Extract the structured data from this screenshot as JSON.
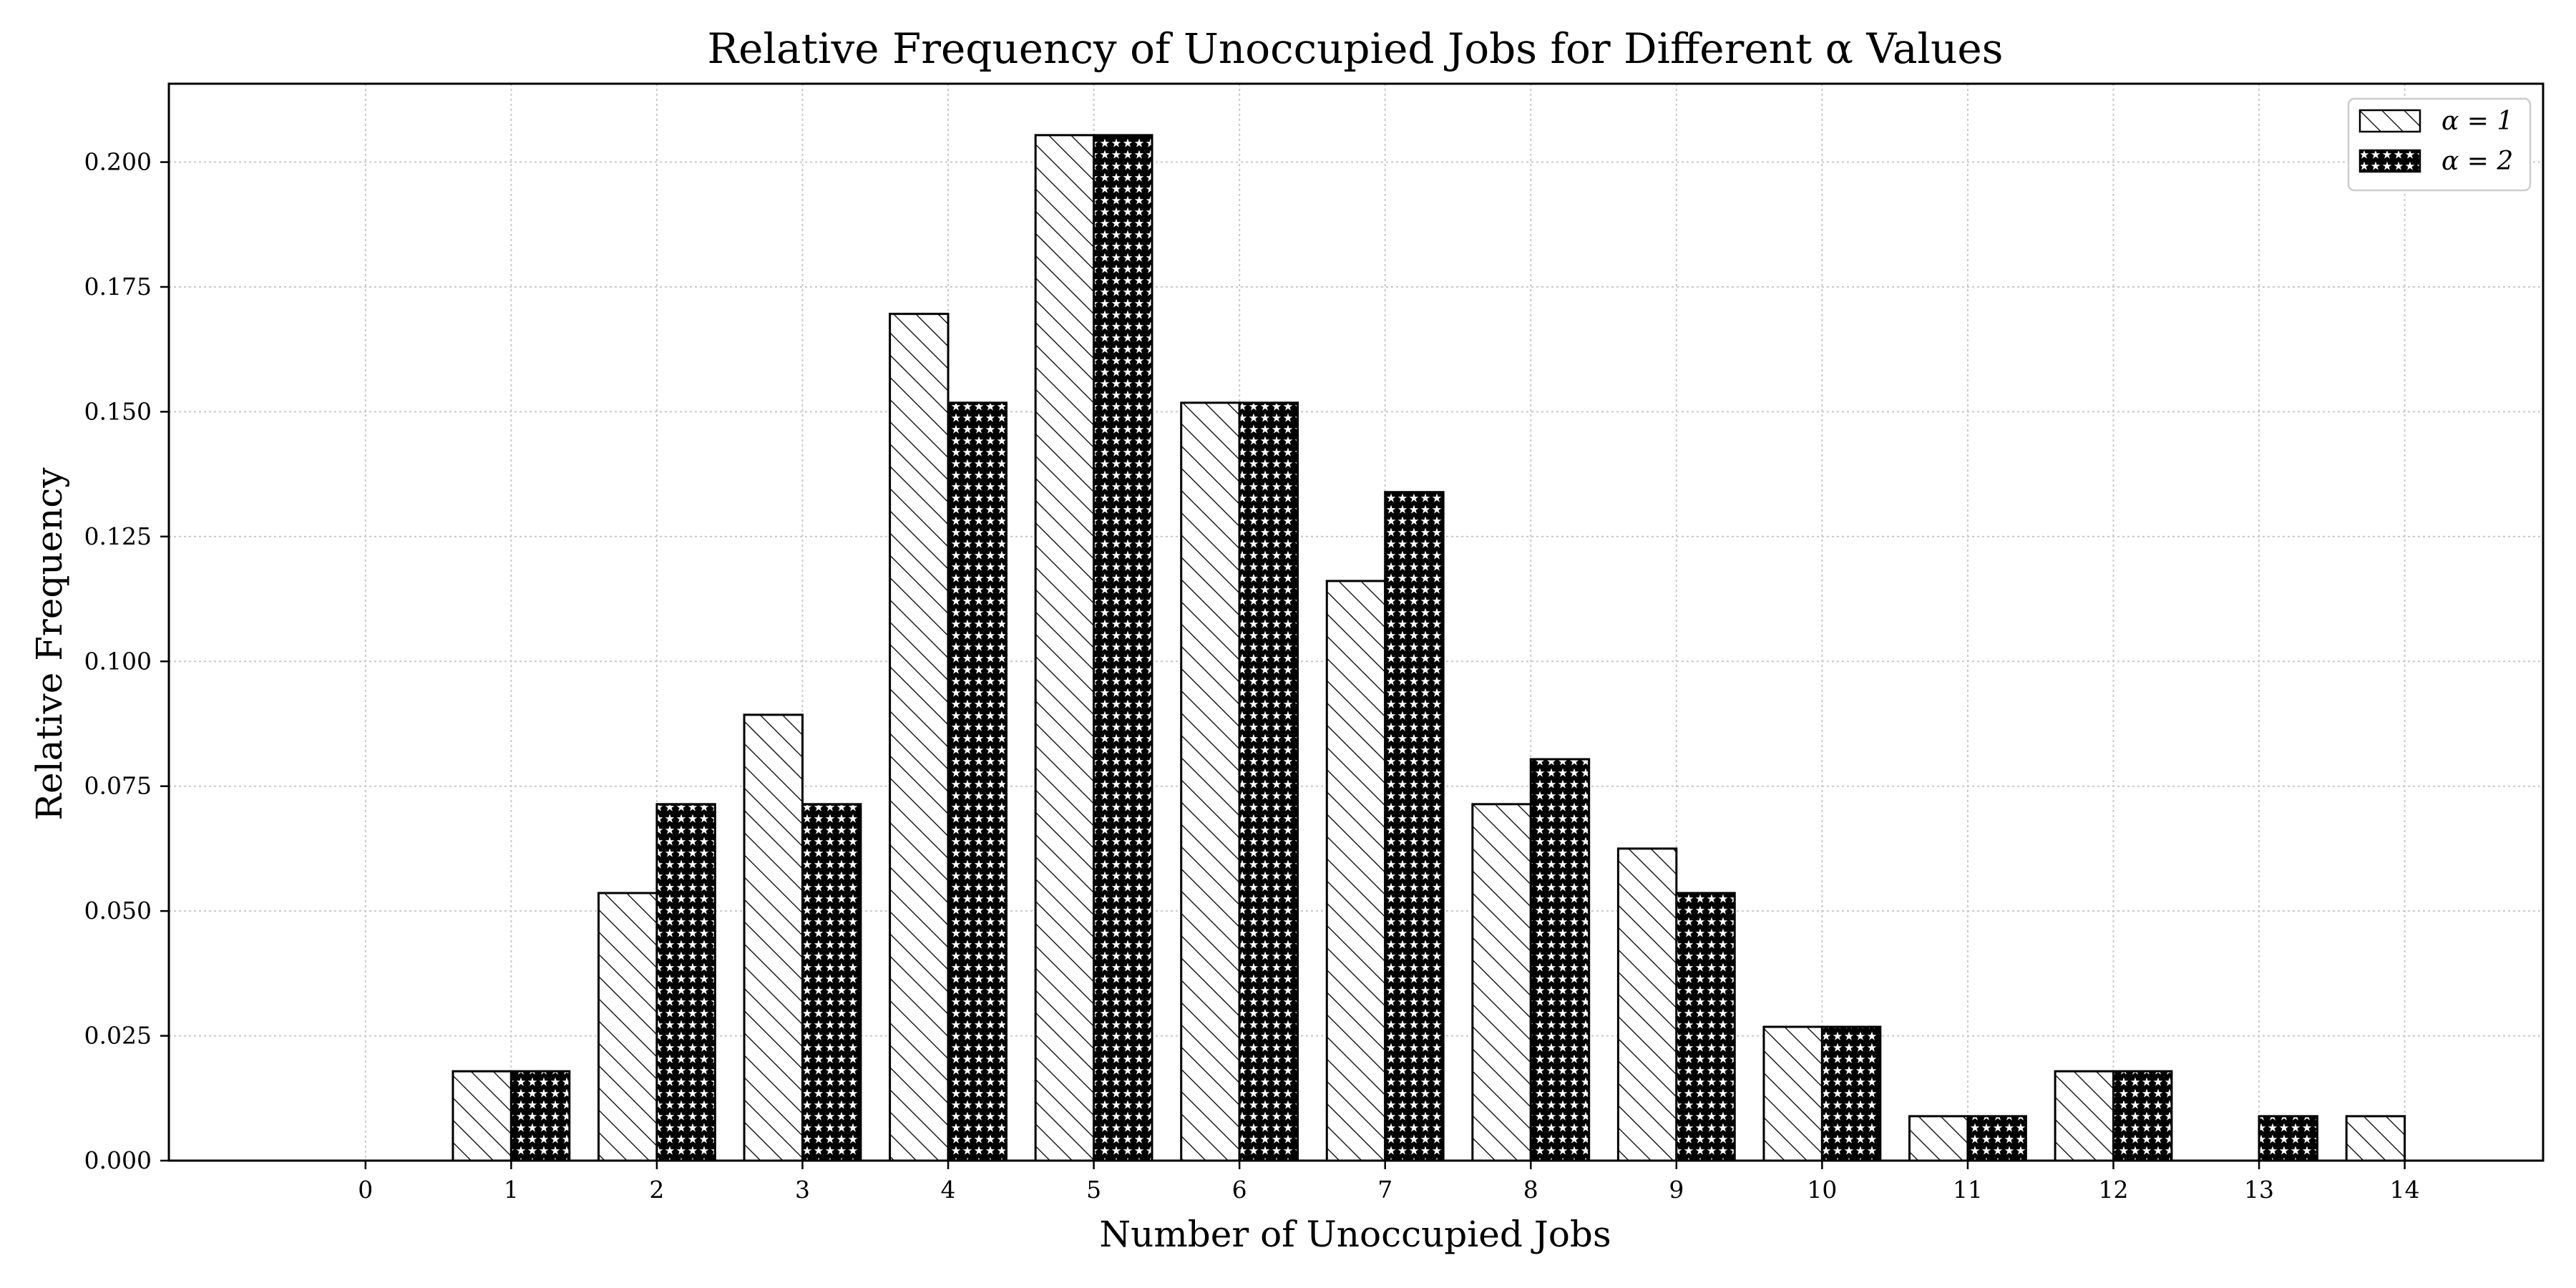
{
  "chart_data": {
    "type": "bar",
    "title": "Relative Frequency of Unoccupied Jobs for Different α Values",
    "xlabel": "Number of Unoccupied Jobs",
    "ylabel": "Relative Frequency",
    "categories": [
      "0",
      "1",
      "2",
      "3",
      "4",
      "5",
      "6",
      "7",
      "8",
      "9",
      "10",
      "11",
      "12",
      "13",
      "14"
    ],
    "series": [
      {
        "name": "α = 1",
        "pattern": "diagonal-hatch",
        "values": [
          0.0,
          0.0179,
          0.0536,
          0.0893,
          0.1696,
          0.2054,
          0.1518,
          0.1161,
          0.0714,
          0.0625,
          0.0268,
          0.0089,
          0.0179,
          0.0,
          0.0089
        ]
      },
      {
        "name": "α = 2",
        "pattern": "star-hatch",
        "values": [
          0.0,
          0.0179,
          0.0714,
          0.0714,
          0.1518,
          0.2054,
          0.1518,
          0.1339,
          0.0804,
          0.0536,
          0.0268,
          0.0089,
          0.0179,
          0.0089,
          0.0
        ]
      }
    ],
    "yticks": [
      "0.000",
      "0.025",
      "0.050",
      "0.075",
      "0.100",
      "0.125",
      "0.150",
      "0.175",
      "0.200"
    ],
    "ylim": [
      0,
      0.2157
    ],
    "xlim": [
      -1.35,
      14.95
    ],
    "grid": true,
    "legend_position": "top-right",
    "colors": {
      "bar_fill": "#ffffff",
      "bar_edge": "#000000",
      "grid": "#c8c8c8"
    }
  }
}
